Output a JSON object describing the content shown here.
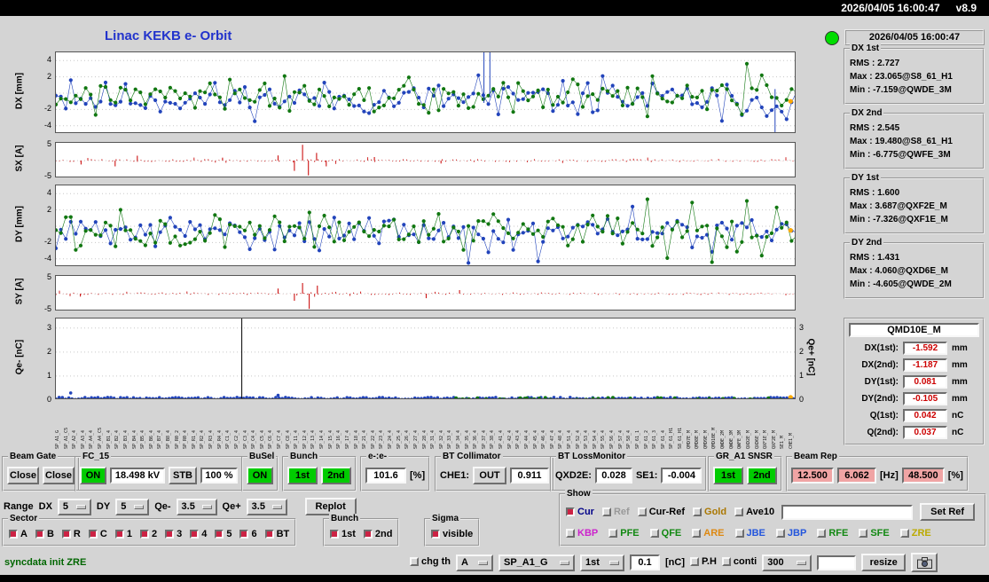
{
  "titlebar": {
    "datetime": "2026/04/05 16:00:47",
    "version": "v8.9"
  },
  "header": {
    "title": "Linac KEKB e- Orbit"
  },
  "status_panel": {
    "timestamp": "2026/04/05 16:00:47",
    "groups": [
      {
        "label": "DX 1st",
        "lines": [
          "RMS : 2.727",
          "Max : 23.065@S8_61_H1",
          "Min : -7.159@QWDE_3M"
        ]
      },
      {
        "label": "DX 2nd",
        "lines": [
          "RMS : 2.545",
          "Max : 19.480@S8_61_H1",
          "Min : -6.775@QWFE_3M"
        ]
      },
      {
        "label": "DY 1st",
        "lines": [
          "RMS : 1.600",
          "Max : 3.687@QXF2E_M",
          "Min : -7.326@QXF1E_M"
        ]
      },
      {
        "label": "DY 2nd",
        "lines": [
          "RMS : 1.431",
          "Max : 4.060@QXD6E_M",
          "Min : -4.605@QWDE_2M"
        ]
      }
    ],
    "qmd": {
      "title": "QMD10E_M",
      "rows": [
        {
          "label": "DX(1st):",
          "value": "-1.592",
          "unit": "mm"
        },
        {
          "label": "DX(2nd):",
          "value": "-1.187",
          "unit": "mm"
        },
        {
          "label": "DY(1st):",
          "value": "0.081",
          "unit": "mm"
        },
        {
          "label": "DY(2nd):",
          "value": "-0.105",
          "unit": "mm"
        },
        {
          "label": "Q(1st):",
          "value": "0.042",
          "unit": "nC"
        },
        {
          "label": "Q(2nd):",
          "value": "0.037",
          "unit": "nC"
        }
      ]
    }
  },
  "controls": {
    "beam_gate": {
      "label": "Beam Gate",
      "buttons": [
        "Close",
        "Close"
      ]
    },
    "fc15": {
      "label": "FC_15",
      "on": "ON",
      "kv": "18.498 kV",
      "stb": "STB",
      "pct": "100 %"
    },
    "busel": {
      "label": "BuSel",
      "on": "ON"
    },
    "bunch": {
      "label": "Bunch",
      "b1": "1st",
      "b2": "2nd"
    },
    "ee": {
      "label": "e-:e-",
      "value": "101.6",
      "unit": "[%]"
    },
    "bt_col": {
      "label": "BT Collimator",
      "che1": "CHE1:",
      "out": "OUT",
      "value": "0.911"
    },
    "bt_loss": {
      "label": "BT LossMonitor",
      "l1": "QXD2E:",
      "v1": "0.028",
      "l2": "SE1:",
      "v2": "-0.004"
    },
    "gr_snsr": {
      "label": "GR_A1 SNSR",
      "b1": "1st",
      "b2": "2nd"
    },
    "beam_rep": {
      "label": "Beam Rep",
      "v1": "12.500",
      "v2": "6.062",
      "u1": "[Hz]",
      "v3": "48.500",
      "u2": "[%]"
    },
    "range": {
      "label": "Range",
      "items": [
        {
          "name": "DX",
          "value": "5"
        },
        {
          "name": "DY",
          "value": "5"
        },
        {
          "name": "Qe-",
          "value": "3.5"
        },
        {
          "name": "Qe+",
          "value": "3.5"
        }
      ],
      "replot": "Replot"
    },
    "sector": {
      "label": "Sector",
      "items": [
        "A",
        "B",
        "R",
        "C",
        "1",
        "2",
        "3",
        "4",
        "5",
        "6",
        "BT"
      ]
    },
    "bunch2": {
      "label": "Bunch",
      "items": [
        "1st",
        "2nd"
      ]
    },
    "sigma": {
      "label": "Sigma",
      "items": [
        "visible"
      ]
    },
    "show": {
      "label": "Show",
      "row1": [
        {
          "t": "Cur",
          "c": "#000088",
          "checked": true
        },
        {
          "t": "Ref",
          "c": "#999999",
          "checked": false
        },
        {
          "t": "Cur-Ref",
          "c": "#000000",
          "checked": false
        },
        {
          "t": "Gold",
          "c": "#aa7700",
          "checked": false
        },
        {
          "t": "Ave10",
          "c": "#000000",
          "checked": false
        }
      ],
      "set_ref": "Set Ref",
      "row2": [
        {
          "t": "KBP",
          "c": "#cc22cc"
        },
        {
          "t": "PFE",
          "c": "#118811"
        },
        {
          "t": "QFE",
          "c": "#118811"
        },
        {
          "t": "ARE",
          "c": "#dd8811"
        },
        {
          "t": "JBE",
          "c": "#2255dd"
        },
        {
          "t": "JBP",
          "c": "#2255dd"
        },
        {
          "t": "RFE",
          "c": "#118811"
        },
        {
          "t": "SFE",
          "c": "#118811"
        },
        {
          "t": "ZRE",
          "c": "#bbaa00"
        }
      ]
    },
    "statusline": "syncdata init ZRE",
    "bottom": {
      "chg_th": "chg th",
      "dd1": "A",
      "dd2": "SP_A1_G",
      "dd3": "1st",
      "th_val": "0.1",
      "th_unit": "[nC]",
      "ph": "P.H",
      "conti": "conti",
      "dd4": "300",
      "resize": "resize"
    }
  },
  "chart_data": {
    "axes": [
      {
        "id": "dx",
        "type": "scatter",
        "ylabel": "DX [mm]",
        "ymin": -5,
        "ymax": 5,
        "ticks": [
          4,
          2,
          -2,
          -4
        ],
        "grid": [
          4,
          2,
          0,
          -2,
          -4
        ],
        "series": [
          {
            "name": "1st",
            "color": "#2244bb",
            "seed": 11,
            "n": 150,
            "mean": -0.7,
            "sd": 1.0,
            "out": [
              [
                0.0,
                -0.3
              ],
              [
                0.02,
                1.6
              ],
              [
                0.57,
                2.2
              ],
              [
                0.6,
                -2.6
              ],
              [
                0.74,
                2.1
              ],
              [
                0.9,
                -3.4
              ],
              [
                0.96,
                -2.8
              ],
              [
                0.985,
                -3.2
              ]
            ]
          },
          {
            "name": "2nd",
            "color": "#117711",
            "seed": 77,
            "n": 150,
            "mean": -0.5,
            "sd": 1.05,
            "out": [
              [
                0.31,
                2.1
              ],
              [
                0.5,
                -2.4
              ],
              [
                0.93,
                3.6
              ],
              [
                0.955,
                2.2
              ],
              [
                0.99,
                0.5
              ]
            ]
          }
        ],
        "vlines": [
          {
            "x": 0.578,
            "v1": -1.2,
            "v2": 5,
            "color": "#2244bb"
          },
          {
            "x": 0.586,
            "v1": -0.5,
            "v2": 5,
            "color": "#2244bb"
          },
          {
            "x": 0.971,
            "v1": 0.5,
            "v2": -5,
            "color": "#2244bb"
          }
        ],
        "marker": {
          "x": 0.992,
          "v": -1.0,
          "color": "#ffaa00"
        }
      },
      {
        "id": "sx",
        "type": "bars",
        "ylabel": "SX [A]",
        "ymin": -5.5,
        "ymax": 5.5,
        "ticks": [
          5,
          -5
        ],
        "grid": [
          0
        ],
        "color": "#cc1111",
        "seed": 5,
        "n": 210,
        "amp": 0.45,
        "spikes": [
          [
            0.034,
            -1.2
          ],
          [
            0.08,
            -1.8
          ],
          [
            0.11,
            1.5
          ],
          [
            0.225,
            0.9
          ],
          [
            0.3,
            1.6
          ],
          [
            0.322,
            -3.2
          ],
          [
            0.333,
            4.9
          ],
          [
            0.341,
            -4.6
          ],
          [
            0.352,
            2.4
          ],
          [
            0.365,
            -1.8
          ],
          [
            0.43,
            1.1
          ],
          [
            0.52,
            -0.9
          ]
        ]
      },
      {
        "id": "dy",
        "type": "scatter",
        "ylabel": "DY [mm]",
        "ymin": -5,
        "ymax": 5,
        "ticks": [
          4,
          2,
          -2,
          -4
        ],
        "grid": [
          4,
          2,
          0,
          -2,
          -4
        ],
        "series": [
          {
            "name": "1st",
            "color": "#2244bb",
            "seed": 31,
            "n": 150,
            "mean": -0.7,
            "sd": 0.9,
            "out": [
              [
                0.56,
                -4.5
              ],
              [
                0.585,
                -3.2
              ],
              [
                0.62,
                -2.9
              ],
              [
                0.65,
                -4.3
              ],
              [
                0.78,
                2.4
              ],
              [
                0.86,
                -2.6
              ]
            ]
          },
          {
            "name": "2nd",
            "color": "#117711",
            "seed": 57,
            "n": 150,
            "mean": -0.6,
            "sd": 1.1,
            "out": [
              [
                0.55,
                -2.9
              ],
              [
                0.8,
                3.3
              ],
              [
                0.825,
                -3.9
              ],
              [
                0.86,
                2.9
              ],
              [
                0.885,
                -4.4
              ],
              [
                0.93,
                3.1
              ],
              [
                0.955,
                -3.6
              ],
              [
                0.97,
                2.3
              ]
            ]
          }
        ],
        "vlines": [],
        "marker": {
          "x": 0.992,
          "v": -0.5,
          "color": "#ffaa00"
        }
      },
      {
        "id": "sy",
        "type": "bars",
        "ylabel": "SY [A]",
        "ymin": -5.5,
        "ymax": 5.5,
        "ticks": [
          5,
          -5
        ],
        "grid": [
          0
        ],
        "color": "#cc1111",
        "seed": 9,
        "n": 210,
        "amp": 0.4,
        "spikes": [
          [
            0.033,
            -0.9
          ],
          [
            0.3,
            1.6
          ],
          [
            0.322,
            -2.2
          ],
          [
            0.333,
            3.3
          ],
          [
            0.342,
            -4.7
          ],
          [
            0.353,
            2.5
          ],
          [
            0.5,
            -1.4
          ],
          [
            0.545,
            1.1
          ]
        ]
      },
      {
        "id": "q",
        "type": "qdots",
        "ylabel": "Qe- [nC]",
        "ylabel_right": "Qe+ [nC]",
        "ymin": 0,
        "ymax": 3.4,
        "ticks": [
          3,
          2,
          1,
          0
        ],
        "ticks_right": [
          3,
          2,
          1,
          0
        ],
        "grid": [
          3,
          2,
          1
        ],
        "blue": {
          "color": "#2244bb",
          "seed": 41,
          "n": 230,
          "base": 0.07,
          "amp": 0.09,
          "out": [
            [
              0.02,
              0.3
            ],
            [
              0.3,
              0.2
            ]
          ]
        },
        "green": {
          "color": "#117711",
          "seed": 43,
          "n": 40,
          "base": 0.06,
          "amp": 0.08,
          "x0": 0.52
        },
        "vlines": [
          {
            "x": 0.251,
            "v1": 0,
            "v2": 3.4,
            "color": "#000000"
          }
        ],
        "marker": {
          "x": 0.992,
          "v": 0.12,
          "color": "#ffaa00"
        }
      }
    ]
  },
  "xlabels": [
    "SP_A1_G",
    "SP_A1_C5",
    "SP_A2_4",
    "SP_A3_4",
    "SP_A4_4",
    "SP_A4_C5",
    "SP_B1_4",
    "SP_B2_4",
    "SP_B3_4",
    "SP_B4_4",
    "SP_B5_4",
    "SP_B6_4",
    "SP_B7_4",
    "SP_B8_4",
    "SP_R0_2",
    "SP_R0_4",
    "SP_R1_4",
    "SP_R2_4",
    "SP_R3_4",
    "SP_R4_4",
    "SP_C1_4",
    "SP_C2_4",
    "SP_C3_4",
    "SP_C4_4",
    "SP_C5_4",
    "SP_C6_4",
    "SP_C7_4",
    "SP_C8_4",
    "SP_11_4",
    "SP_12_4",
    "SP_13_4",
    "SP_14_4",
    "SP_15_4",
    "SP_16_4",
    "SP_17_4",
    "SP_18_4",
    "SP_21_4",
    "SP_22_4",
    "SP_23_4",
    "SP_24_4",
    "SP_25_4",
    "SP_26_4",
    "SP_27_4",
    "SP_28_4",
    "SP_31_4",
    "SP_32_4",
    "SP_33_4",
    "SP_34_4",
    "SP_35_4",
    "SP_36_4",
    "SP_37_4",
    "SP_38_4",
    "SP_41_4",
    "SP_42_4",
    "SP_43_4",
    "SP_44_4",
    "SP_45_4",
    "SP_46_4",
    "SP_47_4",
    "SP_48_4",
    "SP_51_4",
    "SP_52_4",
    "SP_53_4",
    "SP_54_4",
    "SP_55_4",
    "SP_56_4",
    "SP_57_4",
    "SP_58_4",
    "SP_61_1",
    "SP_61_2",
    "SP_61_3",
    "SP_61_4",
    "SP_61_H1",
    "S8_61_H1",
    "QMD7E_M",
    "QMD8E_M",
    "QMD9E_M",
    "QMD10E_M",
    "QWDE_2M",
    "QWDE_3M",
    "QWFE_3M",
    "QXD2E_M",
    "QXD6E_M",
    "QXF1E_M",
    "QXF2E_M",
    "SE1_M",
    "CHE1_M"
  ]
}
